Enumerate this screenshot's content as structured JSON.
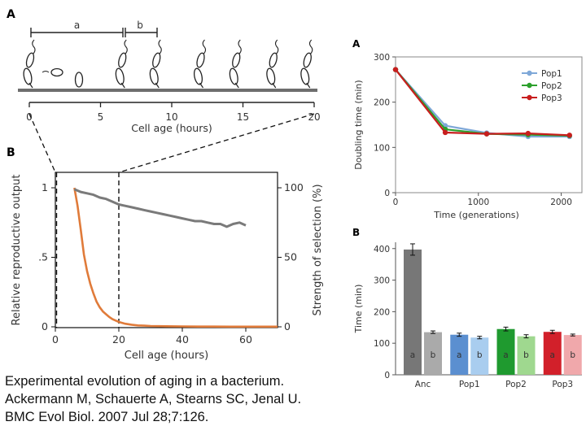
{
  "caption": {
    "line1": "Experimental evolution of aging in a bacterium.",
    "line2": "Ackermann M, Schauerte A, Stearns SC, Jenal U.",
    "line3": "BMC Evol Biol. 2007 Jul 28;7:126."
  },
  "panel_labels": {
    "left_a": "A",
    "left_b": "B",
    "right_a": "A",
    "right_b": "B"
  },
  "colors": {
    "pop1": "#7fa8d8",
    "pop2": "#2ca02c",
    "pop3": "#c81e1e",
    "orange": "#e07b3a",
    "gray": "#7a7a7a"
  },
  "chart_data": [
    {
      "id": "left-a",
      "type": "timeline",
      "interval_labels": [
        "a",
        "b"
      ],
      "xlabel": "Cell age (hours)",
      "xticks": [
        0,
        5,
        10,
        15,
        20
      ],
      "xlim": [
        0,
        20
      ],
      "division_ages": [
        6.7,
        9.1,
        12.2,
        14.7,
        17.3,
        19.7
      ]
    },
    {
      "id": "left-b",
      "type": "line",
      "xlabel": "Cell age (hours)",
      "ylabel_left": "Relative reproductive output",
      "ylabel_right": "Strength of selection (%)",
      "xlim": [
        0,
        70
      ],
      "xticks": [
        0,
        20,
        40,
        60
      ],
      "yticks_left": [
        "0",
        ".5",
        "1"
      ],
      "yticks_right": [
        "0",
        "50",
        "100"
      ],
      "dashed_x": [
        0,
        20
      ],
      "series": [
        {
          "axis": "left",
          "x": [
            6,
            7,
            8,
            9,
            10,
            11,
            12,
            13,
            14,
            15,
            16,
            17,
            18,
            19,
            20,
            22,
            24,
            26,
            28,
            30,
            35,
            40,
            45,
            50,
            55,
            60,
            65,
            70
          ],
          "values": [
            1.0,
            0.87,
            0.7,
            0.52,
            0.4,
            0.31,
            0.24,
            0.18,
            0.14,
            0.11,
            0.09,
            0.07,
            0.055,
            0.045,
            0.035,
            0.022,
            0.015,
            0.01,
            0.008,
            0.006,
            0.004,
            0.003,
            0.002,
            0.002,
            0.001,
            0.001,
            0.001,
            0.001
          ]
        },
        {
          "axis": "right",
          "x": [
            6,
            8,
            10,
            12,
            14,
            16,
            18,
            20,
            22,
            24,
            26,
            28,
            30,
            32,
            34,
            36,
            38,
            40,
            42,
            44,
            46,
            48,
            50,
            52,
            54,
            56,
            58,
            60
          ],
          "values": [
            99,
            97,
            96,
            95,
            93,
            92,
            90,
            88,
            87,
            86,
            85,
            84,
            83,
            82,
            81,
            80,
            79,
            78,
            77,
            76,
            76,
            75,
            74,
            74,
            72,
            74,
            75,
            73
          ]
        }
      ]
    },
    {
      "id": "right-a",
      "type": "line",
      "xlabel": "Time (generations)",
      "ylabel": "Doubling time (min)",
      "xlim": [
        0,
        2250
      ],
      "ylim": [
        0,
        300
      ],
      "xticks": [
        0,
        1000,
        2000
      ],
      "yticks": [
        0,
        100,
        200,
        300
      ],
      "legend_position": "top-right",
      "series": [
        {
          "name": "Pop1",
          "x": [
            0,
            600,
            1100,
            1600,
            2100
          ],
          "values": [
            272,
            148,
            132,
            124,
            124
          ]
        },
        {
          "name": "Pop2",
          "x": [
            0,
            600,
            1100,
            1600,
            2100
          ],
          "values": [
            272,
            140,
            130,
            128,
            126
          ]
        },
        {
          "name": "Pop3",
          "x": [
            0,
            600,
            1100,
            1600,
            2100
          ],
          "values": [
            272,
            133,
            130,
            131,
            127
          ]
        }
      ]
    },
    {
      "id": "right-b",
      "type": "bar",
      "ylabel": "Time (min)",
      "ylim": [
        0,
        420
      ],
      "yticks": [
        0,
        100,
        200,
        300,
        400
      ],
      "categories": [
        "Anc",
        "Pop1",
        "Pop2",
        "Pop3"
      ],
      "bar_labels": [
        "a",
        "b"
      ],
      "series": [
        {
          "values": [
            397,
            127,
            145,
            136
          ],
          "errors": [
            18,
            5,
            6,
            5
          ]
        },
        {
          "values": [
            135,
            118,
            122,
            126
          ],
          "errors": [
            4,
            4,
            5,
            3
          ]
        }
      ],
      "bar_colors": [
        [
          "#777777",
          "#aaaaaa"
        ],
        [
          "#5b8fd0",
          "#a9cdef"
        ],
        [
          "#1f9a2f",
          "#9fd88f"
        ],
        [
          "#d2202a",
          "#f0a8ab"
        ]
      ]
    }
  ]
}
